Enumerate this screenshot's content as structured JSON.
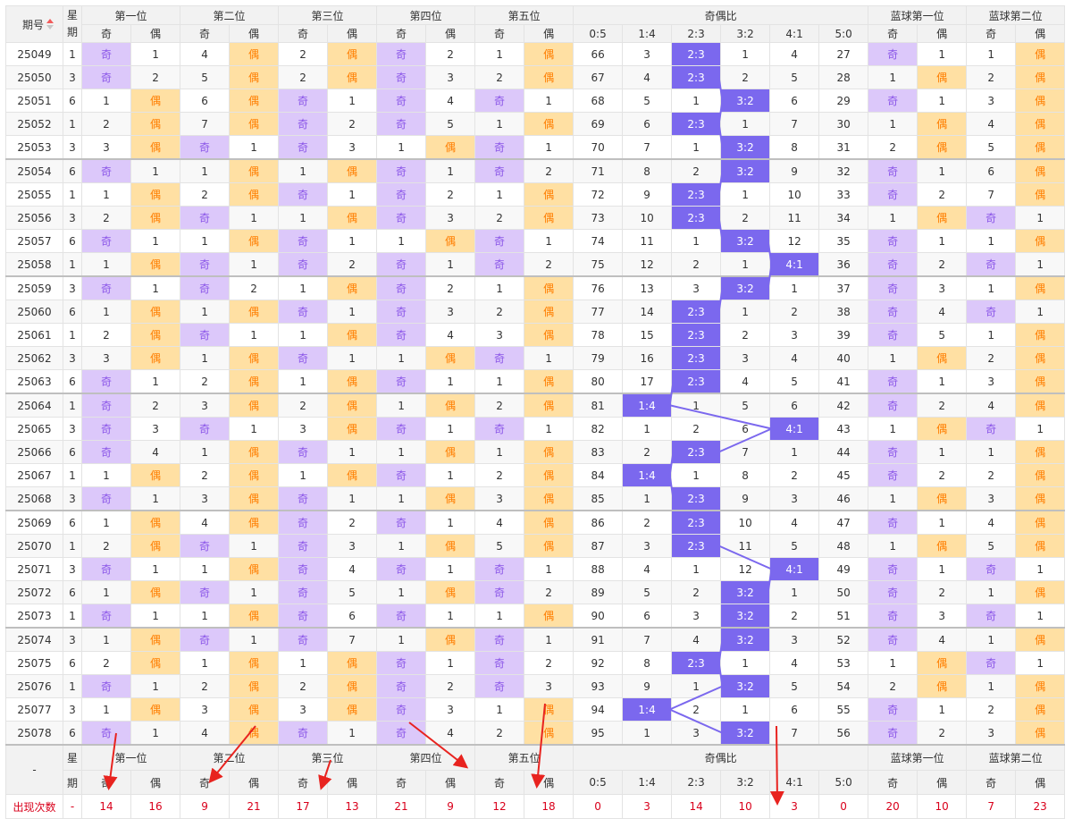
{
  "header": {
    "period": "期号",
    "week": "星期",
    "positions": [
      "第一位",
      "第二位",
      "第三位",
      "第四位",
      "第五位"
    ],
    "ratio_group": "奇偶比",
    "blue": [
      "蓝球第一位",
      "蓝球第二位"
    ],
    "odd": "奇",
    "even": "偶",
    "ratios": [
      "0:5",
      "1:4",
      "2:3",
      "3:2",
      "4:1",
      "5:0"
    ]
  },
  "footer": {
    "period": "-",
    "week_top": "星",
    "week_bottom": "期",
    "count_label": "出现次数",
    "count_week": "-",
    "counts": [
      "14",
      "16",
      "9",
      "21",
      "17",
      "13",
      "21",
      "9",
      "12",
      "18",
      "0",
      "3",
      "14",
      "10",
      "3",
      "0",
      "20",
      "10",
      "7",
      "23"
    ]
  },
  "rows": [
    {
      "p": "25049",
      "w": "1",
      "c": [
        "O",
        "1",
        "4",
        "E",
        "2",
        "E",
        "O",
        "2",
        "1",
        "E"
      ],
      "r": [
        "66",
        "3",
        "2:3",
        "1",
        "4",
        "27"
      ],
      "b": [
        "O",
        "1",
        "1",
        "E"
      ]
    },
    {
      "p": "25050",
      "w": "3",
      "c": [
        "O",
        "2",
        "5",
        "E",
        "2",
        "E",
        "O",
        "3",
        "2",
        "E"
      ],
      "r": [
        "67",
        "4",
        "2:3",
        "2",
        "5",
        "28"
      ],
      "b": [
        "1",
        "E",
        "2",
        "E"
      ]
    },
    {
      "p": "25051",
      "w": "6",
      "c": [
        "1",
        "E",
        "6",
        "E",
        "O",
        "1",
        "O",
        "4",
        "O",
        "1"
      ],
      "r": [
        "68",
        "5",
        "1",
        "3:2",
        "6",
        "29"
      ],
      "b": [
        "O",
        "1",
        "3",
        "E"
      ]
    },
    {
      "p": "25052",
      "w": "1",
      "c": [
        "2",
        "E",
        "7",
        "E",
        "O",
        "2",
        "O",
        "5",
        "1",
        "E"
      ],
      "r": [
        "69",
        "6",
        "2:3",
        "1",
        "7",
        "30"
      ],
      "b": [
        "1",
        "E",
        "4",
        "E"
      ]
    },
    {
      "p": "25053",
      "w": "3",
      "c": [
        "3",
        "E",
        "O",
        "1",
        "O",
        "3",
        "1",
        "E",
        "O",
        "1"
      ],
      "r": [
        "70",
        "7",
        "1",
        "3:2",
        "8",
        "31"
      ],
      "b": [
        "2",
        "E",
        "5",
        "E"
      ]
    },
    {
      "p": "25054",
      "w": "6",
      "c": [
        "O",
        "1",
        "1",
        "E",
        "1",
        "E",
        "O",
        "1",
        "O",
        "2"
      ],
      "r": [
        "71",
        "8",
        "2",
        "3:2",
        "9",
        "32"
      ],
      "b": [
        "O",
        "1",
        "6",
        "E"
      ]
    },
    {
      "p": "25055",
      "w": "1",
      "c": [
        "1",
        "E",
        "2",
        "E",
        "O",
        "1",
        "O",
        "2",
        "1",
        "E"
      ],
      "r": [
        "72",
        "9",
        "2:3",
        "1",
        "10",
        "33"
      ],
      "b": [
        "O",
        "2",
        "7",
        "E"
      ]
    },
    {
      "p": "25056",
      "w": "3",
      "c": [
        "2",
        "E",
        "O",
        "1",
        "1",
        "E",
        "O",
        "3",
        "2",
        "E"
      ],
      "r": [
        "73",
        "10",
        "2:3",
        "2",
        "11",
        "34"
      ],
      "b": [
        "1",
        "E",
        "O",
        "1"
      ]
    },
    {
      "p": "25057",
      "w": "6",
      "c": [
        "O",
        "1",
        "1",
        "E",
        "O",
        "1",
        "1",
        "E",
        "O",
        "1"
      ],
      "r": [
        "74",
        "11",
        "1",
        "3:2",
        "12",
        "35"
      ],
      "b": [
        "O",
        "1",
        "1",
        "E"
      ]
    },
    {
      "p": "25058",
      "w": "1",
      "c": [
        "1",
        "E",
        "O",
        "1",
        "O",
        "2",
        "O",
        "1",
        "O",
        "2"
      ],
      "r": [
        "75",
        "12",
        "2",
        "1",
        "4:1",
        "36"
      ],
      "b": [
        "O",
        "2",
        "O",
        "1"
      ]
    },
    {
      "p": "25059",
      "w": "3",
      "c": [
        "O",
        "1",
        "O",
        "2",
        "1",
        "E",
        "O",
        "2",
        "1",
        "E"
      ],
      "r": [
        "76",
        "13",
        "3",
        "3:2",
        "1",
        "37"
      ],
      "b": [
        "O",
        "3",
        "1",
        "E"
      ]
    },
    {
      "p": "25060",
      "w": "6",
      "c": [
        "1",
        "E",
        "1",
        "E",
        "O",
        "1",
        "O",
        "3",
        "2",
        "E"
      ],
      "r": [
        "77",
        "14",
        "2:3",
        "1",
        "2",
        "38"
      ],
      "b": [
        "O",
        "4",
        "O",
        "1"
      ]
    },
    {
      "p": "25061",
      "w": "1",
      "c": [
        "2",
        "E",
        "O",
        "1",
        "1",
        "E",
        "O",
        "4",
        "3",
        "E"
      ],
      "r": [
        "78",
        "15",
        "2:3",
        "2",
        "3",
        "39"
      ],
      "b": [
        "O",
        "5",
        "1",
        "E"
      ]
    },
    {
      "p": "25062",
      "w": "3",
      "c": [
        "3",
        "E",
        "1",
        "E",
        "O",
        "1",
        "1",
        "E",
        "O",
        "1"
      ],
      "r": [
        "79",
        "16",
        "2:3",
        "3",
        "4",
        "40"
      ],
      "b": [
        "1",
        "E",
        "2",
        "E"
      ]
    },
    {
      "p": "25063",
      "w": "6",
      "c": [
        "O",
        "1",
        "2",
        "E",
        "1",
        "E",
        "O",
        "1",
        "1",
        "E"
      ],
      "r": [
        "80",
        "17",
        "2:3",
        "4",
        "5",
        "41"
      ],
      "b": [
        "O",
        "1",
        "3",
        "E"
      ]
    },
    {
      "p": "25064",
      "w": "1",
      "c": [
        "O",
        "2",
        "3",
        "E",
        "2",
        "E",
        "1",
        "E",
        "2",
        "E"
      ],
      "r": [
        "81",
        "1:4",
        "1",
        "5",
        "6",
        "42"
      ],
      "b": [
        "O",
        "2",
        "4",
        "E"
      ]
    },
    {
      "p": "25065",
      "w": "3",
      "c": [
        "O",
        "3",
        "O",
        "1",
        "3",
        "E",
        "O",
        "1",
        "O",
        "1"
      ],
      "r": [
        "82",
        "1",
        "2",
        "6",
        "4:1",
        "43"
      ],
      "b": [
        "1",
        "E",
        "O",
        "1"
      ]
    },
    {
      "p": "25066",
      "w": "6",
      "c": [
        "O",
        "4",
        "1",
        "E",
        "O",
        "1",
        "1",
        "E",
        "1",
        "E"
      ],
      "r": [
        "83",
        "2",
        "2:3",
        "7",
        "1",
        "44"
      ],
      "b": [
        "O",
        "1",
        "1",
        "E"
      ]
    },
    {
      "p": "25067",
      "w": "1",
      "c": [
        "1",
        "E",
        "2",
        "E",
        "1",
        "E",
        "O",
        "1",
        "2",
        "E"
      ],
      "r": [
        "84",
        "1:4",
        "1",
        "8",
        "2",
        "45"
      ],
      "b": [
        "O",
        "2",
        "2",
        "E"
      ]
    },
    {
      "p": "25068",
      "w": "3",
      "c": [
        "O",
        "1",
        "3",
        "E",
        "O",
        "1",
        "1",
        "E",
        "3",
        "E"
      ],
      "r": [
        "85",
        "1",
        "2:3",
        "9",
        "3",
        "46"
      ],
      "b": [
        "1",
        "E",
        "3",
        "E"
      ]
    },
    {
      "p": "25069",
      "w": "6",
      "c": [
        "1",
        "E",
        "4",
        "E",
        "O",
        "2",
        "O",
        "1",
        "4",
        "E"
      ],
      "r": [
        "86",
        "2",
        "2:3",
        "10",
        "4",
        "47"
      ],
      "b": [
        "O",
        "1",
        "4",
        "E"
      ]
    },
    {
      "p": "25070",
      "w": "1",
      "c": [
        "2",
        "E",
        "O",
        "1",
        "O",
        "3",
        "1",
        "E",
        "5",
        "E"
      ],
      "r": [
        "87",
        "3",
        "2:3",
        "11",
        "5",
        "48"
      ],
      "b": [
        "1",
        "E",
        "5",
        "E"
      ]
    },
    {
      "p": "25071",
      "w": "3",
      "c": [
        "O",
        "1",
        "1",
        "E",
        "O",
        "4",
        "O",
        "1",
        "O",
        "1"
      ],
      "r": [
        "88",
        "4",
        "1",
        "12",
        "4:1",
        "49"
      ],
      "b": [
        "O",
        "1",
        "O",
        "1"
      ]
    },
    {
      "p": "25072",
      "w": "6",
      "c": [
        "1",
        "E",
        "O",
        "1",
        "O",
        "5",
        "1",
        "E",
        "O",
        "2"
      ],
      "r": [
        "89",
        "5",
        "2",
        "3:2",
        "1",
        "50"
      ],
      "b": [
        "O",
        "2",
        "1",
        "E"
      ]
    },
    {
      "p": "25073",
      "w": "1",
      "c": [
        "O",
        "1",
        "1",
        "E",
        "O",
        "6",
        "O",
        "1",
        "1",
        "E"
      ],
      "r": [
        "90",
        "6",
        "3",
        "3:2",
        "2",
        "51"
      ],
      "b": [
        "O",
        "3",
        "O",
        "1"
      ]
    },
    {
      "p": "25074",
      "w": "3",
      "c": [
        "1",
        "E",
        "O",
        "1",
        "O",
        "7",
        "1",
        "E",
        "O",
        "1"
      ],
      "r": [
        "91",
        "7",
        "4",
        "3:2",
        "3",
        "52"
      ],
      "b": [
        "O",
        "4",
        "1",
        "E"
      ]
    },
    {
      "p": "25075",
      "w": "6",
      "c": [
        "2",
        "E",
        "1",
        "E",
        "1",
        "E",
        "O",
        "1",
        "O",
        "2"
      ],
      "r": [
        "92",
        "8",
        "2:3",
        "1",
        "4",
        "53"
      ],
      "b": [
        "1",
        "E",
        "O",
        "1"
      ]
    },
    {
      "p": "25076",
      "w": "1",
      "c": [
        "O",
        "1",
        "2",
        "E",
        "2",
        "E",
        "O",
        "2",
        "O",
        "3"
      ],
      "r": [
        "93",
        "9",
        "1",
        "3:2",
        "5",
        "54"
      ],
      "b": [
        "2",
        "E",
        "1",
        "E"
      ]
    },
    {
      "p": "25077",
      "w": "3",
      "c": [
        "1",
        "E",
        "3",
        "E",
        "3",
        "E",
        "O",
        "3",
        "1",
        "E"
      ],
      "r": [
        "94",
        "1:4",
        "2",
        "1",
        "6",
        "55"
      ],
      "b": [
        "O",
        "1",
        "2",
        "E"
      ]
    },
    {
      "p": "25078",
      "w": "6",
      "c": [
        "O",
        "1",
        "4",
        "E",
        "O",
        "1",
        "O",
        "4",
        "2",
        "E"
      ],
      "r": [
        "95",
        "1",
        "3",
        "3:2",
        "7",
        "56"
      ],
      "b": [
        "O",
        "2",
        "3",
        "E"
      ]
    }
  ]
}
